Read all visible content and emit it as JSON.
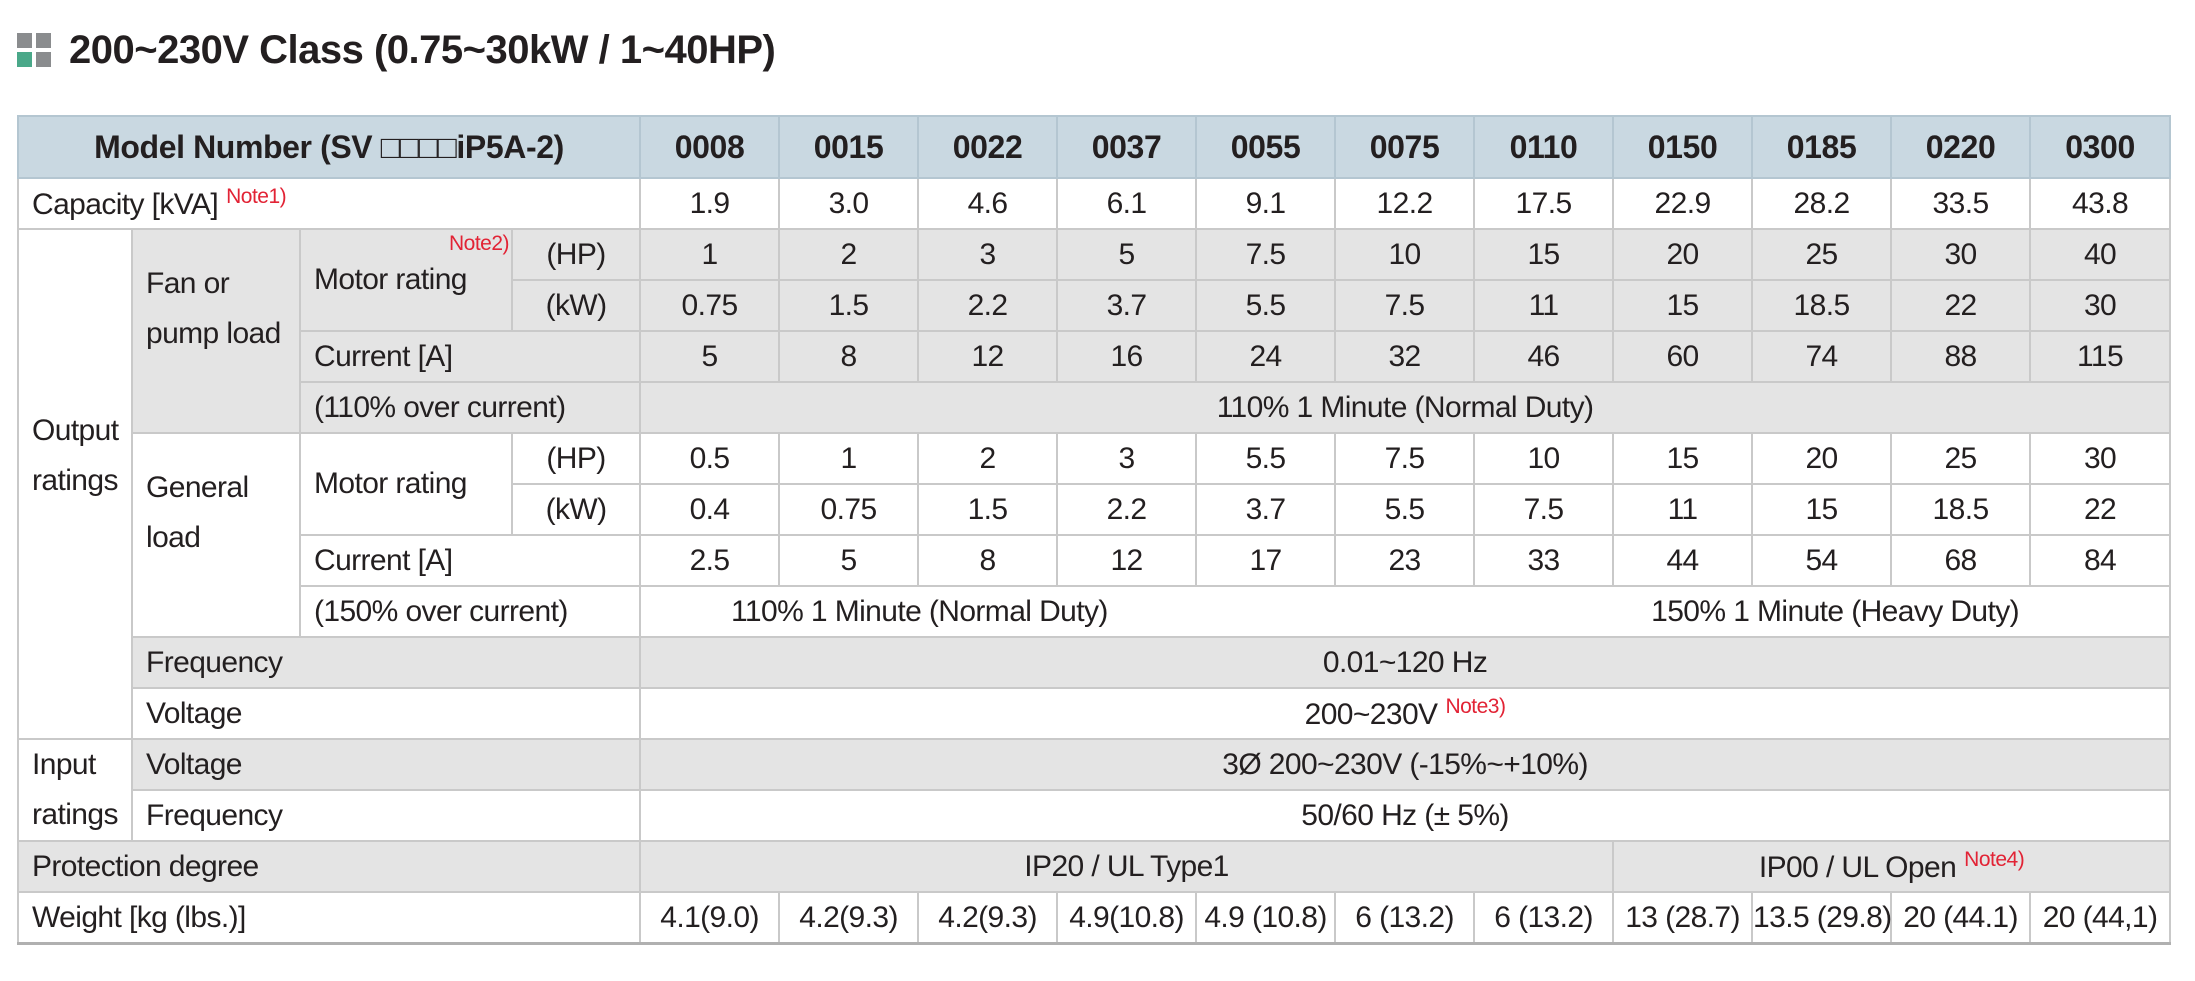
{
  "title": "200~230V Class (0.75~30kW / 1~40HP)",
  "header": {
    "model_label": "Model Number (SV □□□□iP5A-2)",
    "models": [
      "0008",
      "0015",
      "0022",
      "0037",
      "0055",
      "0075",
      "0110",
      "0150",
      "0185",
      "0220",
      "0300"
    ]
  },
  "capacity": {
    "label": "Capacity [kVA]",
    "note": "Note1)",
    "values": [
      "1.9",
      "3.0",
      "4.6",
      "6.1",
      "9.1",
      "12.2",
      "17.5",
      "22.9",
      "28.2",
      "33.5",
      "43.8"
    ]
  },
  "output": {
    "group_label": "Output ratings",
    "fan": {
      "label": "Fan or pump load",
      "motor_label": "Motor rating",
      "motor_note": "Note2)",
      "hp_unit": "(HP)",
      "kw_unit": "(kW)",
      "hp": [
        "1",
        "2",
        "3",
        "5",
        "7.5",
        "10",
        "15",
        "20",
        "25",
        "30",
        "40"
      ],
      "kw": [
        "0.75",
        "1.5",
        "2.2",
        "3.7",
        "5.5",
        "7.5",
        "11",
        "15",
        "18.5",
        "22",
        "30"
      ],
      "current_label": "Current [A]",
      "current": [
        "5",
        "8",
        "12",
        "16",
        "24",
        "32",
        "46",
        "60",
        "74",
        "88",
        "115"
      ],
      "over_label": "(110% over current)",
      "over_value": "110% 1 Minute (Normal Duty)"
    },
    "general": {
      "label": "General load",
      "motor_label": "Motor rating",
      "hp_unit": "(HP)",
      "kw_unit": "(kW)",
      "hp": [
        "0.5",
        "1",
        "2",
        "3",
        "5.5",
        "7.5",
        "10",
        "15",
        "20",
        "25",
        "30"
      ],
      "kw": [
        "0.4",
        "0.75",
        "1.5",
        "2.2",
        "3.7",
        "5.5",
        "7.5",
        "11",
        "15",
        "18.5",
        "22"
      ],
      "current_label": "Current [A]",
      "current": [
        "2.5",
        "5",
        "8",
        "12",
        "17",
        "23",
        "33",
        "44",
        "54",
        "68",
        "84"
      ],
      "over_label": "(150% over current)",
      "over_value_left": "110% 1 Minute (Normal Duty)",
      "over_value_right": "150% 1 Minute (Heavy Duty)"
    },
    "frequency_label": "Frequency",
    "frequency_value": "0.01~120 Hz",
    "voltage_label": "Voltage",
    "voltage_value": "200~230V",
    "voltage_note": "Note3)"
  },
  "input": {
    "group_label": "Input ratings",
    "voltage_label": "Voltage",
    "voltage_value": "3Ø 200~230V (-15%~+10%)",
    "frequency_label": "Frequency",
    "frequency_value": "50/60 Hz (± 5%)"
  },
  "protection": {
    "label": "Protection degree",
    "value_left": "IP20 / UL Type1",
    "value_right": "IP00 / UL Open",
    "note": "Note4)"
  },
  "weight": {
    "label": "Weight [kg (lbs.)]",
    "values": [
      "4.1(9.0)",
      "4.2(9.3)",
      "4.2(9.3)",
      "4.9(10.8)",
      "4.9 (10.8)",
      "6 (13.2)",
      "6 (13.2)",
      "13 (28.7)",
      "13.5 (29.8)",
      "20 (44.1)",
      "20 (44,1)"
    ]
  },
  "colors": {
    "header_bg": "#c9d8e1",
    "shade_bg": "#e4e4e4",
    "note_red": "#e22335",
    "logo_green": "#4aa889",
    "logo_gray": "#8a8c8e"
  }
}
